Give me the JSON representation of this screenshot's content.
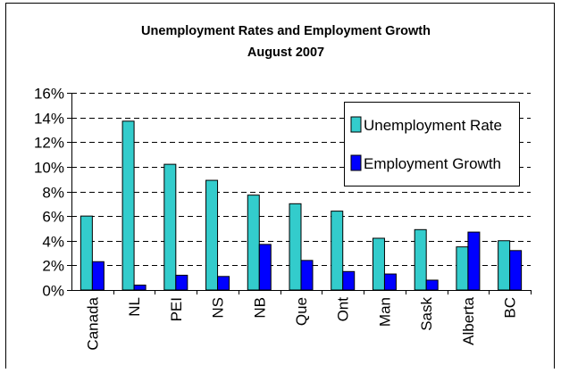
{
  "chart_data": {
    "type": "bar",
    "title": "Unemployment Rates and Employment Growth",
    "subtitle": "August 2007",
    "categories": [
      "Canada",
      "NL",
      "PEI",
      "NS",
      "NB",
      "Que",
      "Ont",
      "Man",
      "Sask",
      "Alberta",
      "BC"
    ],
    "series": [
      {
        "name": "Unemployment Rate",
        "color": "#33CCCC",
        "values": [
          6.0,
          13.7,
          10.2,
          8.9,
          7.7,
          7.0,
          6.4,
          4.2,
          4.9,
          3.5,
          4.0
        ]
      },
      {
        "name": "Employment Growth",
        "color": "#0000FF",
        "values": [
          2.3,
          0.4,
          1.2,
          1.1,
          3.7,
          2.4,
          1.5,
          1.3,
          0.8,
          4.7,
          3.2
        ]
      }
    ],
    "ylim": [
      0,
      16
    ],
    "ytick_step": 2,
    "ytick_format": "percent",
    "grid": true,
    "grid_style": "dashed",
    "legend_position": "top-right",
    "xlabel_rotation": "vertical"
  }
}
